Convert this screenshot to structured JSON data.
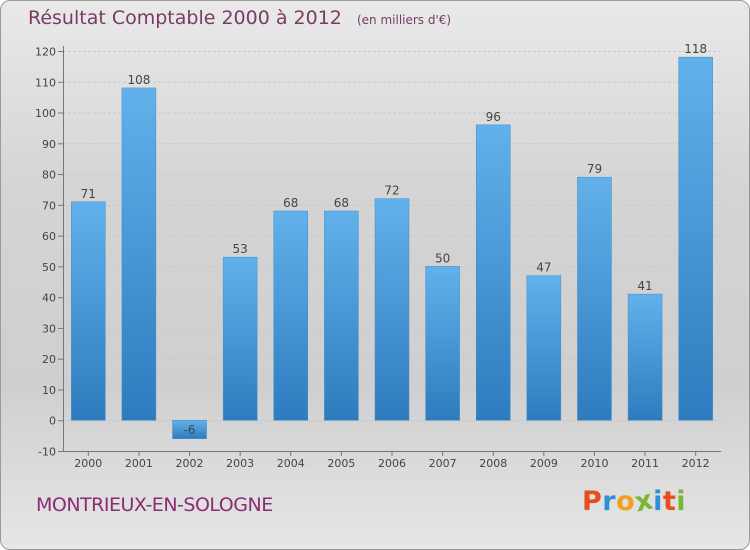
{
  "title": {
    "main": "Résultat Comptable 2000 à 2012",
    "sub": "(en milliers d'€)"
  },
  "chart_data": {
    "type": "bar",
    "title": "Résultat Comptable 2000 à 2012",
    "subtitle": "(en milliers d'€)",
    "xlabel": "",
    "ylabel": "",
    "categories": [
      "2000",
      "2001",
      "2002",
      "2003",
      "2004",
      "2005",
      "2006",
      "2007",
      "2008",
      "2009",
      "2010",
      "2011",
      "2012"
    ],
    "values": [
      71,
      108,
      -6,
      53,
      68,
      68,
      72,
      50,
      96,
      47,
      79,
      41,
      118
    ],
    "ylim": [
      -10,
      120
    ],
    "yticks": [
      -10,
      0,
      10,
      20,
      30,
      40,
      50,
      60,
      70,
      80,
      90,
      100,
      110,
      120
    ],
    "grid": true,
    "colors": {
      "bar": "#5aaae4",
      "bar_dark": "#2f7cbf",
      "grid": "#c9c9c9",
      "axis": "#777777"
    }
  },
  "footer": {
    "commune": "MONTRIEUX-EN-SOLOGNE",
    "brand_letters": [
      {
        "ch": "P",
        "color": "#e84e1b"
      },
      {
        "ch": "r",
        "color": "#2e8fd6"
      },
      {
        "ch": "o",
        "color": "#f2a21a"
      },
      {
        "ch": "x",
        "color": "#7cb733"
      },
      {
        "ch": "i",
        "color": "#2e8fd6"
      },
      {
        "ch": "t",
        "color": "#e84e1b"
      },
      {
        "ch": "i",
        "color": "#7cb733"
      }
    ]
  }
}
